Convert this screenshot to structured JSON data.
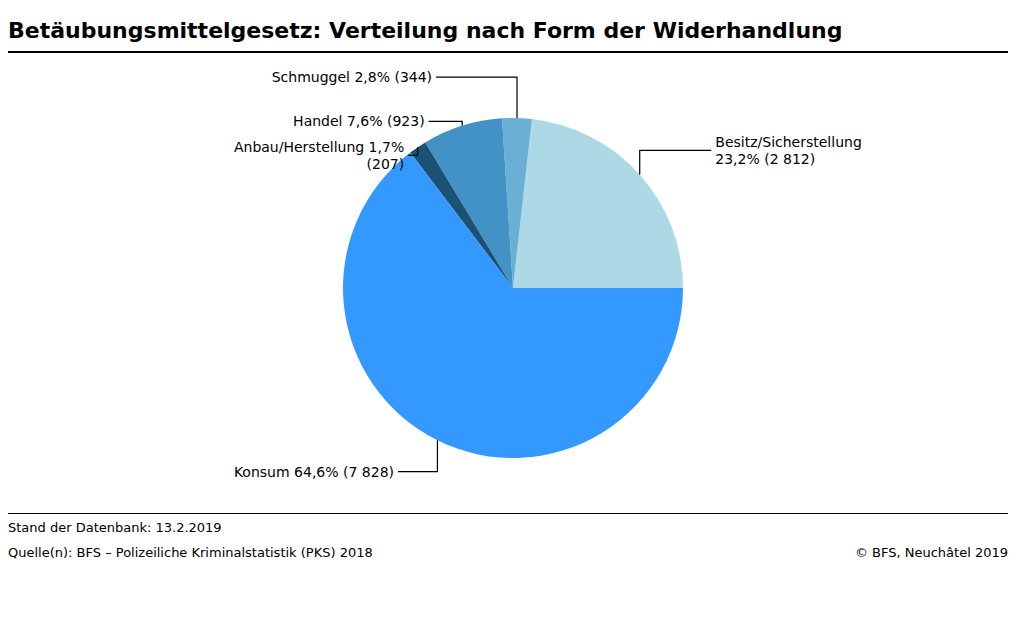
{
  "chart_data": {
    "type": "pie",
    "title": "Betäubungsmittelgesetz: Verteilung nach Form der Widerhandlung",
    "categories": [
      "Besitz/Sicherstellung\n23,2% (2 812)",
      "Schmuggel 2,8% (344)",
      "Handel 7,6% (923)",
      "Anbau/Herstellung 1,7%\n(207)",
      "Konsum 64,6% (7 828)"
    ],
    "values": [
      23.2,
      2.8,
      7.6,
      1.7,
      64.6
    ],
    "colors": [
      "#ADD8E6",
      "#6ab0d4",
      "#4292c6",
      "#1a5276",
      "#3399FF"
    ],
    "annotations": [
      "Stand der Datenbank: 13.2.2019",
      "Quelle(n): BFS – Polizeiliche Kriminalstatistik (PKS) 2018",
      "© BFS, Neuchâtel 2019"
    ]
  }
}
